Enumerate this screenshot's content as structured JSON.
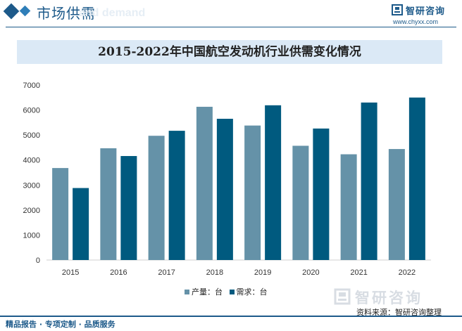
{
  "header": {
    "section_title": "市场供需",
    "section_subtitle": "and demand",
    "logo_text": "智研咨询",
    "site_url": "www.chyxx.com"
  },
  "chart_data": {
    "type": "bar",
    "title": "2015-2022年中国航空发动机行业供需变化情况",
    "categories": [
      "2015",
      "2016",
      "2017",
      "2018",
      "2019",
      "2020",
      "2021",
      "2022"
    ],
    "series": [
      {
        "name": "产量：台",
        "color": "#6592a8",
        "values": [
          3680,
          4470,
          4970,
          6130,
          5380,
          4570,
          4230,
          4440
        ]
      },
      {
        "name": "需求：台",
        "color": "#005a7f",
        "values": [
          2880,
          4160,
          5170,
          5650,
          6190,
          5260,
          6300,
          6500
        ]
      }
    ],
    "y_ticks": [
      "0",
      "1000",
      "2000",
      "3000",
      "4000",
      "5000",
      "6000",
      "7000"
    ],
    "ylim": [
      0,
      7000
    ],
    "xlabel": "",
    "ylabel": "",
    "legend_position": "bottom"
  },
  "footer": {
    "watermark_text": "智研咨询",
    "source": "资料来源：智研咨询整理",
    "tagline": "精品报告 · 专项定制 · 品质服务"
  }
}
